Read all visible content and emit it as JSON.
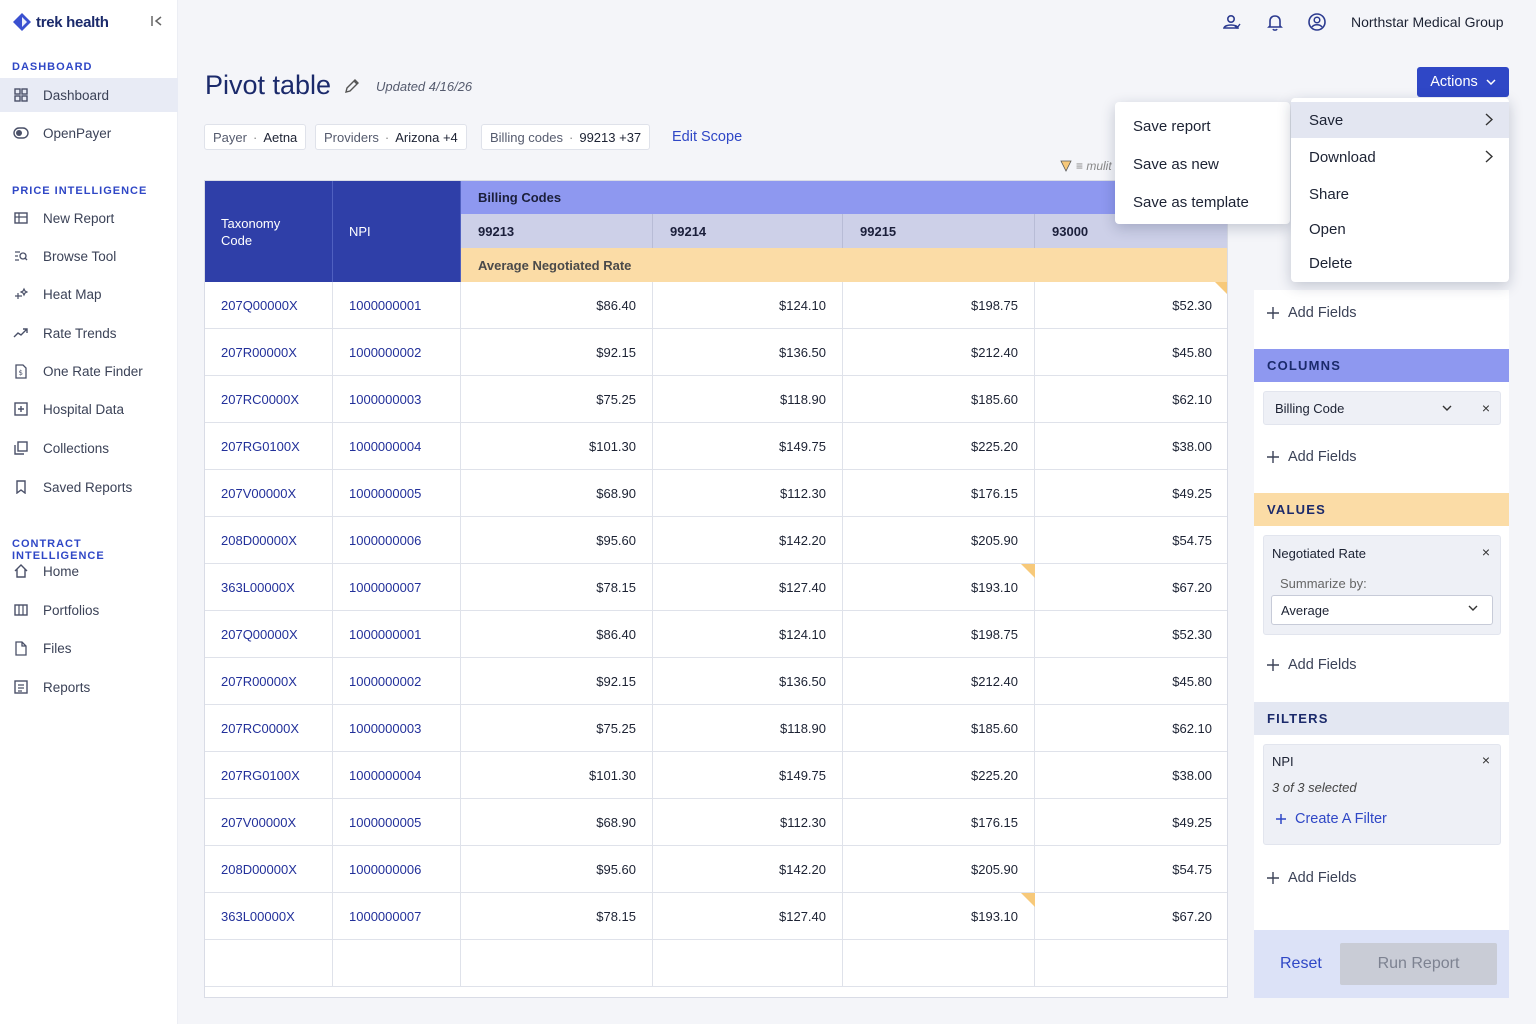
{
  "brand": {
    "name": "trek health"
  },
  "sidebar": {
    "sections": [
      {
        "title": "DASHBOARD",
        "items": [
          {
            "label": "Dashboard",
            "icon": "grid-icon",
            "active": true
          },
          {
            "label": "OpenPayer",
            "icon": "toggle-icon"
          }
        ]
      },
      {
        "title": "PRICE INTELLIGENCE",
        "items": [
          {
            "label": "New Report",
            "icon": "table-icon"
          },
          {
            "label": "Browse Tool",
            "icon": "search-list-icon"
          },
          {
            "label": "Heat Map",
            "icon": "sparkle-icon"
          },
          {
            "label": "Rate Trends",
            "icon": "trend-icon"
          },
          {
            "label": "One Rate Finder",
            "icon": "document-dollar-icon"
          },
          {
            "label": "Hospital Data",
            "icon": "plus-square-icon"
          },
          {
            "label": "Collections",
            "icon": "collections-icon"
          },
          {
            "label": "Saved Reports",
            "icon": "bookmark-icon"
          }
        ]
      },
      {
        "title": "CONTRACT INTELLIGENCE",
        "items": [
          {
            "label": "Home",
            "icon": "home-icon"
          },
          {
            "label": "Portfolios",
            "icon": "columns-icon"
          },
          {
            "label": "Files",
            "icon": "file-icon"
          },
          {
            "label": "Reports",
            "icon": "report-icon"
          }
        ]
      }
    ]
  },
  "topbar": {
    "org_name": "Northstar Medical Group",
    "icons": [
      "users-icon",
      "bell-icon",
      "user-circle-icon"
    ]
  },
  "header": {
    "title": "Pivot table",
    "updated": "Updated 4/16/26",
    "chips": [
      {
        "label": "Payer",
        "value": "Aetna"
      },
      {
        "label": "Providers",
        "value": "Arizona +4"
      },
      {
        "label": "Billing codes",
        "value": "99213 +37"
      }
    ],
    "edit_scope": "Edit Scope",
    "mulit_label": "≡ mulit",
    "actions_label": "Actions"
  },
  "table": {
    "col_headers": [
      "Taxonomy Code",
      "NPI"
    ],
    "group_header": "Billing Codes",
    "codes": [
      "99213",
      "99214",
      "99215",
      "93000"
    ],
    "value_header": "Average Negotiated Rate",
    "rows": [
      {
        "tax": "207Q00000X",
        "npi": "1000000001",
        "vals": [
          "$86.40",
          "$124.10",
          "$198.75",
          "$52.30"
        ]
      },
      {
        "tax": "207R00000X",
        "npi": "1000000002",
        "vals": [
          "$92.15",
          "$136.50",
          "$212.40",
          "$45.80"
        ]
      },
      {
        "tax": "207RC0000X",
        "npi": "1000000003",
        "vals": [
          "$75.25",
          "$118.90",
          "$185.60",
          "$62.10"
        ]
      },
      {
        "tax": "207RG0100X",
        "npi": "1000000004",
        "vals": [
          "$101.30",
          "$149.75",
          "$225.20",
          "$38.00"
        ]
      },
      {
        "tax": "207V00000X",
        "npi": "1000000005",
        "vals": [
          "$68.90",
          "$112.30",
          "$176.15",
          "$49.25"
        ]
      },
      {
        "tax": "208D00000X",
        "npi": "1000000006",
        "vals": [
          "$95.60",
          "$142.20",
          "$205.90",
          "$54.75"
        ]
      },
      {
        "tax": "363L00000X",
        "npi": "1000000007",
        "vals": [
          "$78.15",
          "$127.40",
          "$193.10",
          "$67.20"
        ]
      },
      {
        "tax": "207Q00000X",
        "npi": "1000000001",
        "vals": [
          "$86.40",
          "$124.10",
          "$198.75",
          "$52.30"
        ]
      },
      {
        "tax": "207R00000X",
        "npi": "1000000002",
        "vals": [
          "$92.15",
          "$136.50",
          "$212.40",
          "$45.80"
        ]
      },
      {
        "tax": "207RC0000X",
        "npi": "1000000003",
        "vals": [
          "$75.25",
          "$118.90",
          "$185.60",
          "$62.10"
        ]
      },
      {
        "tax": "207RG0100X",
        "npi": "1000000004",
        "vals": [
          "$101.30",
          "$149.75",
          "$225.20",
          "$38.00"
        ]
      },
      {
        "tax": "207V00000X",
        "npi": "1000000005",
        "vals": [
          "$68.90",
          "$112.30",
          "$176.15",
          "$49.25"
        ]
      },
      {
        "tax": "208D00000X",
        "npi": "1000000006",
        "vals": [
          "$95.60",
          "$142.20",
          "$205.90",
          "$54.75"
        ]
      },
      {
        "tax": "363L00000X",
        "npi": "1000000007",
        "vals": [
          "$78.15",
          "$127.40",
          "$193.10",
          "$67.20"
        ]
      }
    ]
  },
  "panel": {
    "add_fields": "Add Fields",
    "columns_title": "COLUMNS",
    "columns_field": "Billing Code",
    "values_title": "VALUES",
    "values_field": "Negotiated Rate",
    "summarize_label": "Summarize by:",
    "summarize_value": "Average",
    "filters_title": "FILTERS",
    "filter_field": "NPI",
    "filter_summary": "3 of 3 selected",
    "create_filter": "Create A Filter",
    "reset": "Reset",
    "run": "Run Report"
  },
  "actions_menu": {
    "items": [
      "Save",
      "Download",
      "Share",
      "Open",
      "Delete"
    ]
  },
  "save_submenu": {
    "items": [
      "Save report",
      "Save as new",
      "Save as template"
    ]
  },
  "colors": {
    "accent": "#2f47c6",
    "header_dark": "#2f3fa8",
    "billing_header": "#8e98f0",
    "value_header": "#fbdca6",
    "flag": "#f7c97a"
  }
}
